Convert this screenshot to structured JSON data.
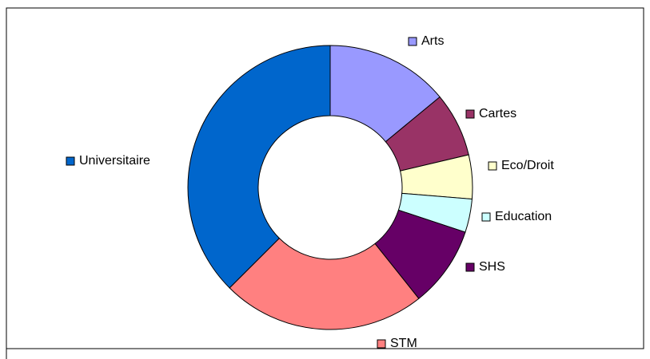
{
  "chart_data": {
    "type": "donut",
    "categories": [
      "Arts",
      "Cartes",
      "Eco/Droit",
      "Education",
      "SHS",
      "STM",
      "Universitaire"
    ],
    "values": [
      14,
      7.3,
      5,
      3.8,
      9.2,
      23.2,
      37.5
    ],
    "colors": [
      "#9999ff",
      "#993366",
      "#ffffcc",
      "#ccffff",
      "#660066",
      "#ff8080",
      "#0066cc"
    ]
  }
}
